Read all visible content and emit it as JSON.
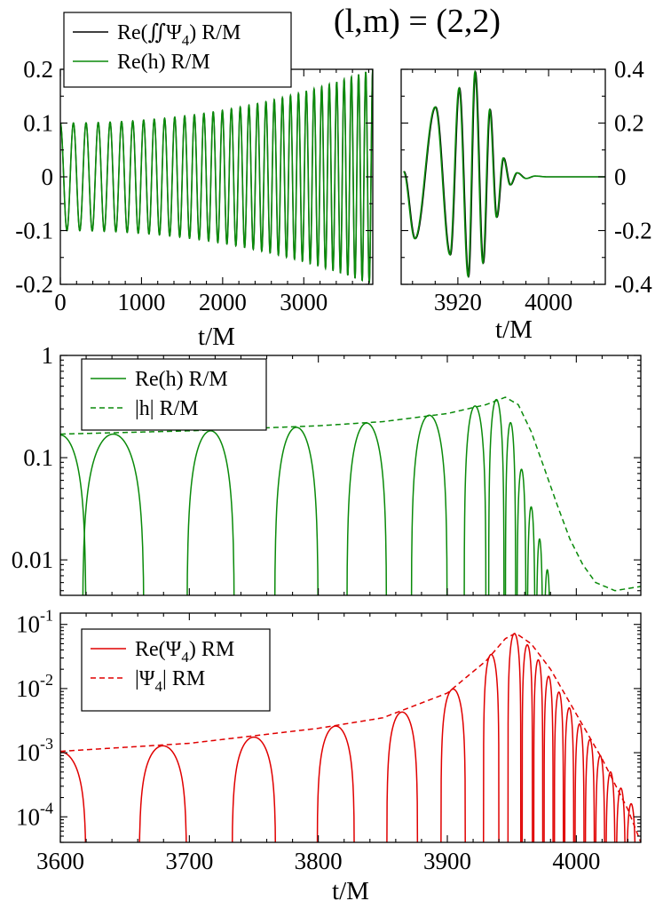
{
  "title": "(l,m) = (2,2)",
  "colors": {
    "green": "#0a8a0a",
    "black": "#000000",
    "red": "#e00000"
  },
  "chart_data": [
    {
      "id": "inspiral",
      "type": "line",
      "xlabel": "t/M",
      "ylabel": "",
      "xlim": [
        0,
        3850
      ],
      "ylim": [
        -0.2,
        0.2
      ],
      "xticks": [
        0,
        1000,
        2000,
        3000
      ],
      "yticks": [
        -0.2,
        -0.1,
        0,
        0.1,
        0.2
      ],
      "yticklabels": [
        "-0.2",
        "-0.1",
        "0",
        "0.1",
        "0.2"
      ],
      "legend": {
        "placement": "top-left",
        "entries": [
          {
            "label_pre": "Re(∬Ψ",
            "label_sub": "4",
            "label_post": ") R/M",
            "color": "#000000",
            "dash": "solid"
          },
          {
            "label": "Re(h) R/M",
            "color": "#0a8a0a",
            "dash": "solid"
          }
        ]
      },
      "series": [
        {
          "name": "Re(∬Ψ4) R/M",
          "color": "#000000",
          "model": "chirp",
          "amplitude_start": 0.1,
          "amplitude_end": 0.2,
          "cycles": 34
        },
        {
          "name": "Re(h) R/M",
          "color": "#0a8a0a",
          "model": "chirp",
          "amplitude_start": 0.1,
          "amplitude_end": 0.2,
          "cycles": 34
        }
      ]
    },
    {
      "id": "merger",
      "type": "line",
      "xlabel": "t/M",
      "ylabel": "",
      "xlim": [
        3870,
        4050
      ],
      "ylim": [
        -0.4,
        0.4
      ],
      "xticks": [
        3920,
        4000
      ],
      "yticks": [
        -0.4,
        -0.2,
        0,
        0.2,
        0.4
      ],
      "yticklabels": [
        "-0.4",
        "-0.2",
        "0",
        "0.2",
        "0.4"
      ],
      "axis_side": "right",
      "peaks": [
        {
          "t": 3872,
          "y": 0.02
        },
        {
          "t": 3882,
          "y": -0.23
        },
        {
          "t": 3900,
          "y": 0.26
        },
        {
          "t": 3913,
          "y": -0.29
        },
        {
          "t": 3921,
          "y": 0.33
        },
        {
          "t": 3929,
          "y": -0.37
        },
        {
          "t": 3935,
          "y": 0.39
        },
        {
          "t": 3942,
          "y": -0.32
        },
        {
          "t": 3948,
          "y": 0.25
        },
        {
          "t": 3954,
          "y": -0.15
        },
        {
          "t": 3960,
          "y": 0.07
        },
        {
          "t": 3966,
          "y": -0.03
        },
        {
          "t": 3972,
          "y": 0.015
        },
        {
          "t": 3980,
          "y": -0.006
        },
        {
          "t": 3988,
          "y": 0.003
        },
        {
          "t": 3998,
          "y": 0.0
        },
        {
          "t": 4050,
          "y": 0.0
        }
      ],
      "series": [
        {
          "name": "Re(∬Ψ4) R/M",
          "color": "#000000"
        },
        {
          "name": "Re(h) R/M",
          "color": "#0a8a0a"
        }
      ]
    },
    {
      "id": "h-log",
      "type": "line",
      "yscale": "log",
      "xlim": [
        3600,
        4050
      ],
      "ylim": [
        0.0045,
        1.0
      ],
      "yticks": [
        1,
        0.1,
        0.01
      ],
      "yticklabels": [
        "1",
        "0.1",
        "0.01"
      ],
      "legend": {
        "placement": "top-left",
        "entries": [
          {
            "label": "Re(h) R/M",
            "color": "#0a8a0a",
            "dash": "solid"
          },
          {
            "label": "|h| R/M",
            "color": "#0a8a0a",
            "dash": "dashed"
          }
        ]
      },
      "envelope": [
        {
          "t": 3600,
          "y": 0.17
        },
        {
          "t": 3700,
          "y": 0.183
        },
        {
          "t": 3800,
          "y": 0.205
        },
        {
          "t": 3850,
          "y": 0.225
        },
        {
          "t": 3900,
          "y": 0.27
        },
        {
          "t": 3930,
          "y": 0.33
        },
        {
          "t": 3945,
          "y": 0.39
        },
        {
          "t": 3955,
          "y": 0.33
        },
        {
          "t": 3965,
          "y": 0.18
        },
        {
          "t": 3975,
          "y": 0.08
        },
        {
          "t": 3985,
          "y": 0.035
        },
        {
          "t": 3995,
          "y": 0.016
        },
        {
          "t": 4005,
          "y": 0.009
        },
        {
          "t": 4015,
          "y": 0.006
        },
        {
          "t": 4030,
          "y": 0.005
        },
        {
          "t": 4050,
          "y": 0.0055
        }
      ],
      "lobes": [
        {
          "t0": 3600,
          "t1": 3620,
          "peak": 0.0
        },
        {
          "t0": 3617,
          "t1": 3665,
          "peak": 0.17
        },
        {
          "t0": 3698,
          "t1": 3735,
          "peak": 0.183
        },
        {
          "t0": 3766,
          "t1": 3800,
          "peak": 0.198
        },
        {
          "t0": 3822,
          "t1": 3853,
          "peak": 0.218
        },
        {
          "t0": 3872,
          "t1": 3900,
          "peak": 0.26
        },
        {
          "t0": 3913,
          "t1": 3930,
          "peak": 0.32
        },
        {
          "t0": 3932,
          "t1": 3944,
          "peak": 0.37
        },
        {
          "t0": 3945,
          "t1": 3953,
          "peak": 0.22
        },
        {
          "t0": 3954,
          "t1": 3961,
          "peak": 0.077
        },
        {
          "t0": 3962,
          "t1": 3968,
          "peak": 0.033
        },
        {
          "t0": 3969,
          "t1": 3974,
          "peak": 0.016
        },
        {
          "t0": 3975,
          "t1": 3980,
          "peak": 0.008
        }
      ]
    },
    {
      "id": "psi4-log",
      "type": "line",
      "yscale": "log",
      "xlabel": "t/M",
      "xlim": [
        3600,
        4050
      ],
      "ylim": [
        4e-05,
        0.15
      ],
      "xticks": [
        3600,
        3700,
        3800,
        3900,
        4000
      ],
      "yticks": [
        0.1,
        0.01,
        0.001,
        0.0001
      ],
      "yticklabels": [
        {
          "base": "10",
          "exp": "-1"
        },
        {
          "base": "10",
          "exp": "-2"
        },
        {
          "base": "10",
          "exp": "-3"
        },
        {
          "base": "10",
          "exp": "-4"
        }
      ],
      "legend": {
        "placement": "top-left",
        "entries": [
          {
            "label_pre": "Re(Ψ",
            "label_sub": "4",
            "label_post": ") RM",
            "color": "#e00000",
            "dash": "solid"
          },
          {
            "label_pre": "|Ψ",
            "label_sub": "4",
            "label_post": "| RM",
            "color": "#e00000",
            "dash": "dashed"
          }
        ]
      },
      "envelope": [
        {
          "t": 3600,
          "y": 0.00105
        },
        {
          "t": 3700,
          "y": 0.0014
        },
        {
          "t": 3800,
          "y": 0.0024
        },
        {
          "t": 3850,
          "y": 0.0035
        },
        {
          "t": 3900,
          "y": 0.0085
        },
        {
          "t": 3930,
          "y": 0.027
        },
        {
          "t": 3945,
          "y": 0.06
        },
        {
          "t": 3953,
          "y": 0.073
        },
        {
          "t": 3965,
          "y": 0.05
        },
        {
          "t": 3980,
          "y": 0.02
        },
        {
          "t": 4000,
          "y": 0.004
        },
        {
          "t": 4020,
          "y": 0.0008
        },
        {
          "t": 4040,
          "y": 0.00013
        },
        {
          "t": 4050,
          "y": 4e-05
        }
      ],
      "lobes": [
        {
          "t0": 3600,
          "t1": 3620,
          "peak": 0.0
        },
        {
          "t0": 3661,
          "t1": 3698,
          "peak": 0.00128
        },
        {
          "t0": 3733,
          "t1": 3767,
          "peak": 0.00175
        },
        {
          "t0": 3799,
          "t1": 3828,
          "peak": 0.0026
        },
        {
          "t0": 3853,
          "t1": 3877,
          "peak": 0.0043
        },
        {
          "t0": 3895,
          "t1": 3914,
          "peak": 0.0098
        },
        {
          "t0": 3928,
          "t1": 3940,
          "peak": 0.034
        },
        {
          "t0": 3947,
          "t1": 3957,
          "peak": 0.072
        },
        {
          "t0": 3958,
          "t1": 3966,
          "peak": 0.048
        },
        {
          "t0": 3967,
          "t1": 3974,
          "peak": 0.028
        },
        {
          "t0": 3975,
          "t1": 3982,
          "peak": 0.0155
        },
        {
          "t0": 3983,
          "t1": 3990,
          "peak": 0.0088
        },
        {
          "t0": 3991,
          "t1": 3998,
          "peak": 0.005
        },
        {
          "t0": 3999,
          "t1": 4006,
          "peak": 0.0028
        },
        {
          "t0": 4007,
          "t1": 4014,
          "peak": 0.0016
        },
        {
          "t0": 4015,
          "t1": 4022,
          "peak": 0.0009
        },
        {
          "t0": 4023,
          "t1": 4030,
          "peak": 0.0005
        },
        {
          "t0": 4031,
          "t1": 4038,
          "peak": 0.00028
        },
        {
          "t0": 4039,
          "t1": 4046,
          "peak": 0.00016
        }
      ]
    }
  ]
}
